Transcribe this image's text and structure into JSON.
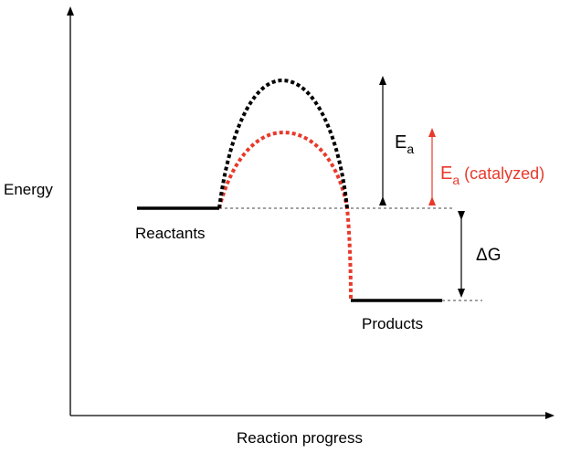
{
  "labels": {
    "y_axis": "Energy",
    "x_axis": "Reaction progress",
    "reactants": "Reactants",
    "products": "Products",
    "delta_g": "ΔG",
    "ea_base": "E",
    "ea_sub": "a",
    "ea_cat_base": "E",
    "ea_cat_sub": "a",
    "ea_cat_suffix": " (catalyzed)"
  },
  "colors": {
    "uncatalyzed": "#000000",
    "catalyzed": "#e8392b",
    "axis": "#000000",
    "guide": "#555555"
  }
}
